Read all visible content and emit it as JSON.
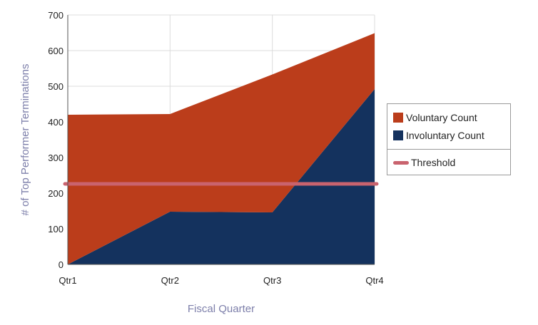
{
  "chart_data": {
    "type": "area",
    "categories": [
      "Qtr1",
      "Qtr2",
      "Qtr3",
      "Qtr4"
    ],
    "series": [
      {
        "name": "Involuntary Count",
        "values": [
          0,
          148,
          146,
          492
        ],
        "color": "#14325e"
      },
      {
        "name": "Voluntary Count",
        "values": [
          420,
          274,
          387,
          157
        ],
        "color": "#bb3d1b"
      }
    ],
    "stacked": true,
    "threshold": {
      "name": "Threshold",
      "value": 226,
      "color": "#c9636e"
    },
    "xlabel": "Fiscal Quarter",
    "ylabel": "# of Top Performer Terminations",
    "ylim": [
      0,
      700
    ],
    "yticks": [
      0,
      100,
      200,
      300,
      400,
      500,
      600,
      700
    ],
    "grid": true,
    "legend_position": "right"
  },
  "legend": {
    "items": [
      {
        "label": "Voluntary Count",
        "color": "#bb3d1b"
      },
      {
        "label": "Involuntary Count",
        "color": "#14325e"
      },
      {
        "label": "Threshold",
        "color": "#c9636e"
      }
    ]
  }
}
